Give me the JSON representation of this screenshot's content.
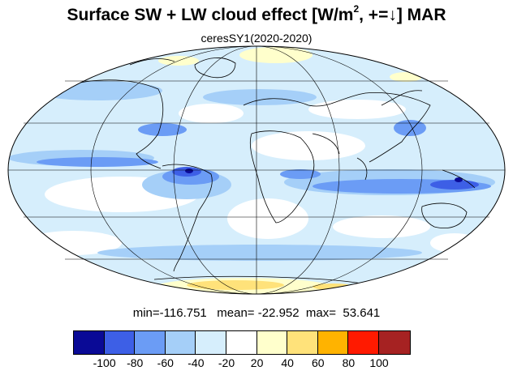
{
  "title": {
    "main": "Surface SW + LW cloud effect [W/m",
    "sup": "2",
    "rest": ", +=↓]  MAR"
  },
  "subtitle": "ceresSY1(2020-2020)",
  "stats": {
    "min": "-116.751",
    "mean": "-22.952",
    "max": "53.641"
  },
  "colorbar": {
    "colors": [
      "#0a0a96",
      "#3d5fe6",
      "#6b9cf5",
      "#a5cff8",
      "#d6eefc",
      "#ffffff",
      "#ffffcc",
      "#ffe27a",
      "#ffb300",
      "#ff1a00",
      "#a62222"
    ],
    "ticks": [
      "-100",
      "-80",
      "-60",
      "-40",
      "-20",
      "20",
      "40",
      "60",
      "80",
      "100"
    ]
  },
  "map": {
    "projection": "mollweide",
    "ocean_base_color": "#d6eefc",
    "coastline_color": "#000000"
  }
}
